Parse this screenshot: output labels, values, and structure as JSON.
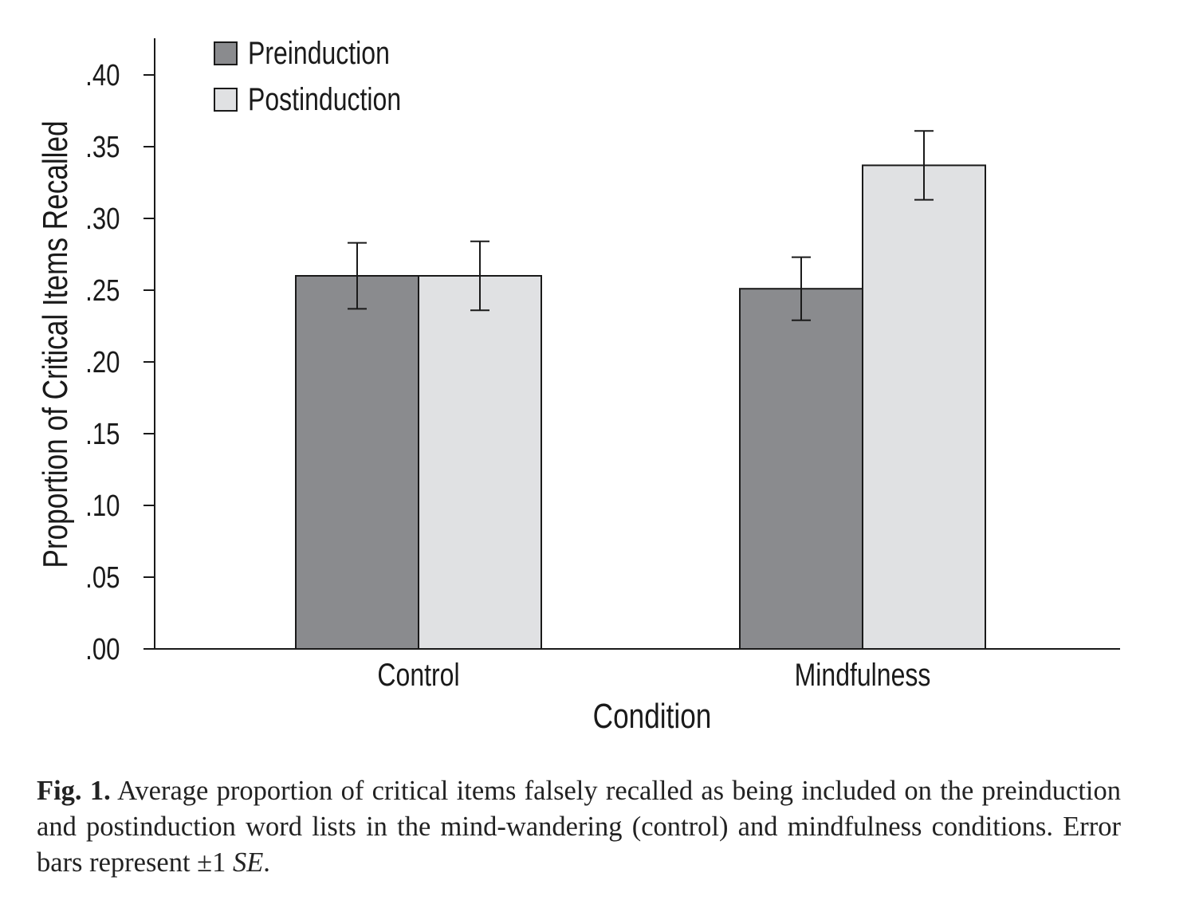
{
  "chart_data": {
    "type": "bar",
    "categories": [
      "Control",
      "Mindfulness"
    ],
    "series": [
      {
        "name": "Preinduction",
        "color": "#8a8b8e",
        "values": [
          0.26,
          0.251
        ],
        "errors": [
          0.023,
          0.022
        ]
      },
      {
        "name": "Postinduction",
        "color": "#e0e1e3",
        "values": [
          0.26,
          0.337
        ],
        "errors": [
          0.024,
          0.024
        ]
      }
    ],
    "xlabel": "Condition",
    "ylabel": "Proportion of Critical Items Recalled",
    "ylim": [
      0,
      0.4
    ],
    "yticks": [
      0.0,
      0.05,
      0.1,
      0.15,
      0.2,
      0.25,
      0.3,
      0.35,
      0.4
    ],
    "ytick_labels": [
      ".00",
      ".05",
      ".10",
      ".15",
      ".20",
      ".25",
      ".30",
      ".35",
      ".40"
    ],
    "legend_position": "top-left",
    "grid": false,
    "error_bars": "±1 SE"
  },
  "caption": {
    "label": "Fig. 1.",
    "text_before_se": " Average proportion of critical items falsely recalled as being included on the preinduction and postinduction word lists in the mind-wandering (control) and mindfulness conditions. Error bars represent ±1 ",
    "se": "SE",
    "text_after_se": "."
  }
}
